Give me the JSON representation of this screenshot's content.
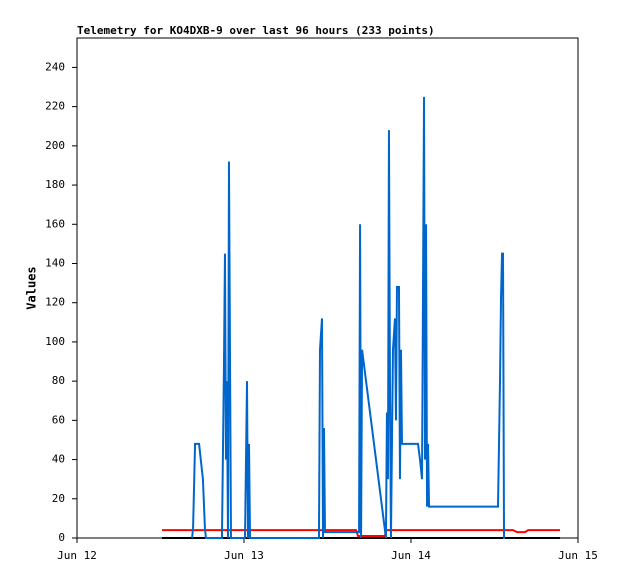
{
  "chart_data": {
    "type": "line",
    "title": "Telemetry for KO4DXB-9 over last 96 hours (233 points)",
    "y_label": "Values",
    "xlim": [
      0,
      3
    ],
    "xticks": [
      {
        "value": 0,
        "label": "Jun 12"
      },
      {
        "value": 1,
        "label": "Jun 13"
      },
      {
        "value": 2,
        "label": "Jun 14"
      },
      {
        "value": 3,
        "label": "Jun 15"
      }
    ],
    "ylim": [
      0,
      255
    ],
    "yticks": [
      0,
      20,
      40,
      60,
      80,
      100,
      120,
      140,
      160,
      180,
      200,
      220,
      240
    ],
    "series": [
      {
        "color": "#000000",
        "x": [
          0.509,
          2.892
        ],
        "values": [
          0,
          0
        ]
      },
      {
        "color": "#ff0000",
        "x": [
          0.509,
          1.671,
          1.683,
          1.844,
          1.85,
          2.611,
          2.635,
          2.683,
          2.701,
          2.892
        ],
        "values": [
          4,
          4,
          1,
          1,
          4,
          4,
          3,
          3,
          4,
          4
        ]
      },
      {
        "color": "#0066cc",
        "x": [
          0.689,
          0.695,
          0.707,
          0.731,
          0.754,
          0.766,
          0.772,
          0.868,
          0.88,
          0.886,
          0.892,
          0.898,
          0.904,
          0.91,
          0.916,
          0.922,
          1.006,
          1.018,
          1.024,
          1.03,
          1.036,
          1.449,
          1.455,
          1.467,
          1.473,
          1.479,
          1.485,
          1.689,
          1.695,
          1.701,
          1.707,
          1.85,
          1.856,
          1.862,
          1.868,
          1.874,
          1.88,
          1.892,
          1.904,
          1.91,
          1.916,
          1.928,
          1.934,
          1.94,
          1.946,
          2.042,
          2.054,
          2.066,
          2.078,
          2.084,
          2.09,
          2.096,
          2.102,
          2.108,
          2.521,
          2.533,
          2.539,
          2.545,
          2.551,
          2.557,
          2.563
        ],
        "values": [
          0,
          5,
          48,
          48,
          30,
          5,
          0,
          0,
          88,
          145,
          40,
          80,
          0,
          192,
          96,
          0,
          0,
          80,
          0,
          48,
          0,
          0,
          96,
          112,
          0,
          56,
          3,
          3,
          160,
          0,
          96,
          0,
          64,
          30,
          208,
          80,
          0,
          96,
          112,
          60,
          128,
          128,
          30,
          96,
          48,
          48,
          40,
          30,
          225,
          40,
          160,
          16,
          48,
          16,
          16,
          80,
          122,
          145,
          145,
          0,
          0
        ]
      }
    ]
  }
}
